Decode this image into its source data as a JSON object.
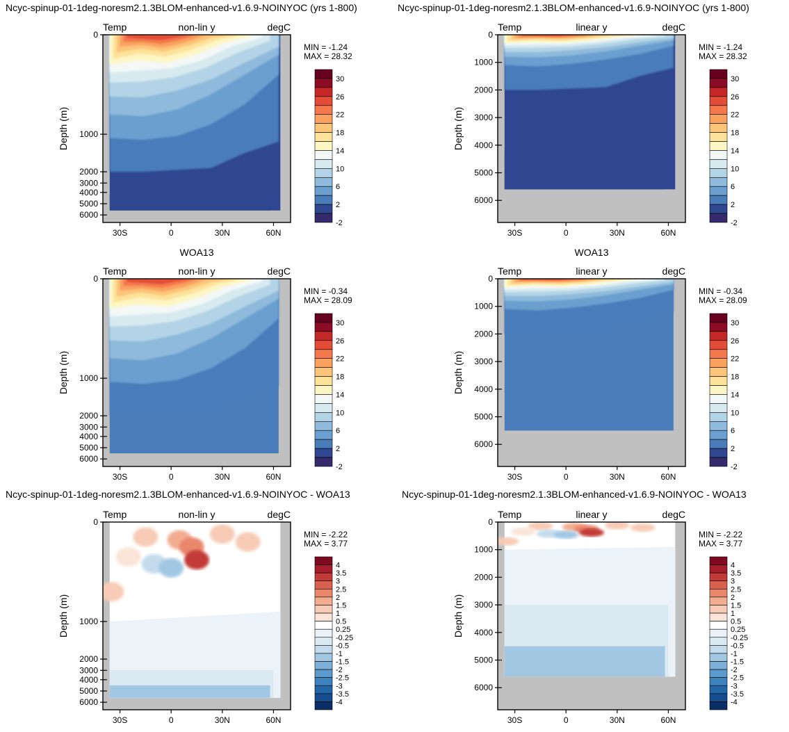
{
  "colors": {
    "land": "#c0c0c0",
    "temp_palette": [
      "#352a6b",
      "#2f4690",
      "#4a7cba",
      "#6a9fcf",
      "#8fbadb",
      "#b3d4e6",
      "#d7eaf0",
      "#f3f8f6",
      "#fdf6c4",
      "#fde39a",
      "#fcc57a",
      "#f9a15e",
      "#f3784b",
      "#e34c37",
      "#c42927",
      "#8c0c25",
      "#67001f"
    ],
    "diff_palette": [
      "#0a2e66",
      "#164d8e",
      "#2366a8",
      "#3d82bd",
      "#5b9acc",
      "#7fb1d8",
      "#a2c7e3",
      "#c3dbec",
      "#dbe9f3",
      "#ecf3f8",
      "#ffffff",
      "#fbe4d8",
      "#f7cbb5",
      "#f2ad91",
      "#e9876d",
      "#d8614f",
      "#c23b37",
      "#a61e2b",
      "#7f0a22"
    ]
  },
  "temp_levels": [
    "30",
    "26",
    "22",
    "18",
    "14",
    "10",
    "6",
    "2",
    "-2"
  ],
  "diff_levels": [
    "4",
    "3.5",
    "3",
    "2.5",
    "2",
    "1.5",
    "1",
    "0.5",
    "0.25",
    "-0.25",
    "-0.5",
    "-1",
    "-1.5",
    "-2",
    "-2.5",
    "-3",
    "-3.5",
    "-4"
  ],
  "section_titles": {
    "model": "Ncyc-spinup-01-1deg-noresm2.1.3BLOM-enhanced-v1.6.9-NOINYOC (yrs 1-800)",
    "obs": "WOA13",
    "diff": "Ncyc-spinup-01-1deg-noresm2.1.3BLOM-enhanced-v1.6.9-NOINYOC - WOA13"
  },
  "panels": [
    {
      "id": "model-nonlin",
      "row": 0,
      "col": 0,
      "field": "Temp",
      "scale": "non-lin y",
      "unit": "degC",
      "ylabel": "Depth (m)",
      "min": "MIN = -1.24",
      "max": "MAX = 28.32",
      "palette": "temp"
    },
    {
      "id": "model-lin",
      "row": 0,
      "col": 1,
      "field": "Temp",
      "scale": "linear y",
      "unit": "degC",
      "ylabel": "Depth (m)",
      "min": "MIN = -1.24",
      "max": "MAX = 28.32",
      "palette": "temp"
    },
    {
      "id": "obs-nonlin",
      "row": 1,
      "col": 0,
      "field": "Temp",
      "scale": "non-lin y",
      "unit": "degC",
      "ylabel": "Depth (m)",
      "min": "MIN = -0.34",
      "max": "MAX = 28.09",
      "palette": "temp"
    },
    {
      "id": "obs-lin",
      "row": 1,
      "col": 1,
      "field": "Temp",
      "scale": "linear y",
      "unit": "degC",
      "ylabel": "Depth (m)",
      "min": "MIN = -0.34",
      "max": "MAX = 28.09",
      "palette": "temp"
    },
    {
      "id": "diff-nonlin",
      "row": 2,
      "col": 0,
      "field": "Temp",
      "scale": "non-lin y",
      "unit": "degC",
      "ylabel": "Depth (m)",
      "min": "MIN = -2.22",
      "max": "MAX =  3.77",
      "palette": "diff"
    },
    {
      "id": "diff-lin",
      "row": 2,
      "col": 1,
      "field": "Temp",
      "scale": "linear y",
      "unit": "degC",
      "ylabel": "Depth (m)",
      "min": "MIN = -2.22",
      "max": "MAX =  3.77",
      "palette": "diff"
    }
  ],
  "chart_data": {
    "type": "heatmap",
    "x_ticks": [
      "30S",
      "0",
      "30N",
      "60N"
    ],
    "x_tick_values": [
      -30,
      0,
      30,
      60
    ],
    "xlim": [
      -40,
      70
    ],
    "nonlin_y_ticks": [
      0,
      1000,
      2000,
      3000,
      4000,
      5000,
      6000
    ],
    "lin_y_ticks": [
      0,
      1000,
      2000,
      3000,
      4000,
      5000,
      6000
    ],
    "lin_ylim": [
      0,
      6800
    ]
  }
}
